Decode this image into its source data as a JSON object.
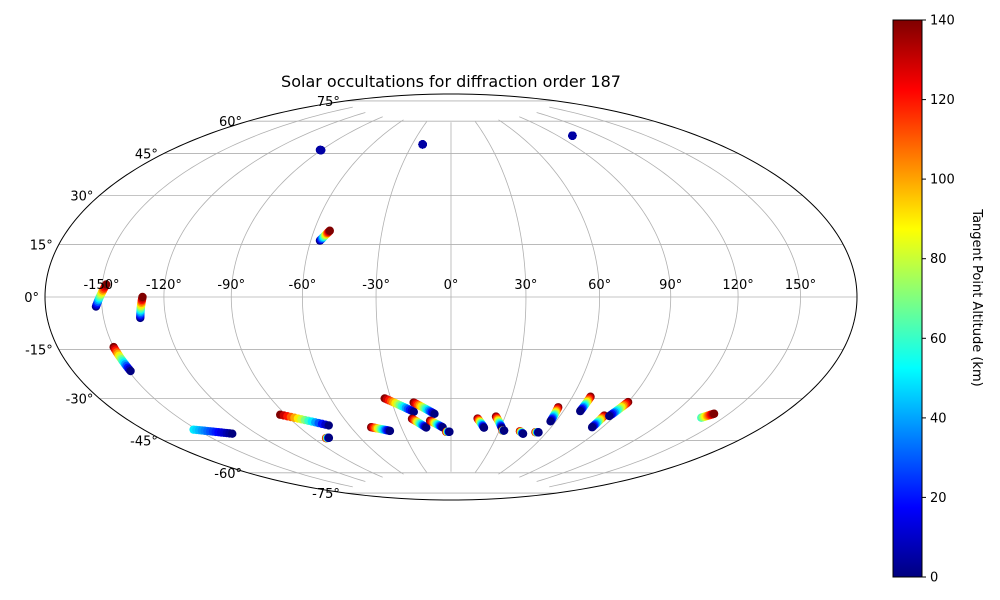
{
  "chart_data": {
    "type": "scatter",
    "projection": "hammer",
    "title": "Solar occultations for diffraction order 187",
    "grid": true,
    "lon_ticks": [
      -150,
      -120,
      -90,
      -60,
      -30,
      0,
      30,
      60,
      90,
      120,
      150
    ],
    "lon_tick_labels": [
      "-150°",
      "-120°",
      "-90°",
      "-60°",
      "-30°",
      "0°",
      "30°",
      "60°",
      "90°",
      "120°",
      "150°"
    ],
    "lat_ticks": [
      -75,
      -60,
      -45,
      -30,
      -15,
      0,
      15,
      30,
      45,
      60,
      75
    ],
    "lat_tick_labels": [
      "-75°",
      "-60°",
      "-45°",
      "-30°",
      "-15°",
      "0°",
      "15°",
      "30°",
      "45°",
      "60°",
      "75°"
    ],
    "colorbar": {
      "label": "Tangent Point Altitude (km)",
      "range": [
        0,
        140
      ],
      "ticks": [
        0,
        20,
        40,
        60,
        80,
        100,
        120,
        140
      ],
      "tick_labels": [
        "0",
        "20",
        "40",
        "60",
        "80",
        "100",
        "120",
        "140"
      ],
      "colormap": "jet"
    },
    "occultations": [
      {
        "start": [
          -153,
          -3
        ],
        "end": [
          -148,
          4
        ],
        "alt_start": 0,
        "alt_end": 140
      },
      {
        "start": [
          -132,
          -7
        ],
        "end": [
          -130,
          0
        ],
        "alt_start": 0,
        "alt_end": 140
      },
      {
        "start": [
          -150,
          -16
        ],
        "end": [
          -149,
          -24
        ],
        "alt_start": 140,
        "alt_end": 0
      },
      {
        "start": [
          -152,
          -45
        ],
        "end": [
          -134,
          -49
        ],
        "alt_start": 50,
        "alt_end": 0
      },
      {
        "start": [
          -93,
          -45
        ],
        "end": [
          -72,
          -51
        ],
        "alt_start": 140,
        "alt_end": 0
      },
      {
        "start": [
          -82,
          -56
        ],
        "end": [
          -80,
          -56
        ],
        "alt_start": 140,
        "alt_end": 0
      },
      {
        "start": [
          -91,
          58
        ],
        "end": [
          -90,
          58
        ],
        "alt_start": 5,
        "alt_end": 5
      },
      {
        "start": [
          -22,
          64
        ],
        "end": [
          -22,
          64
        ],
        "alt_start": 5,
        "alt_end": 5
      },
      {
        "start": [
          -56,
          22
        ],
        "end": [
          -53,
          26
        ],
        "alt_start": 0,
        "alt_end": 140
      },
      {
        "start": [
          -48,
          -53
        ],
        "end": [
          -38,
          -55
        ],
        "alt_start": 140,
        "alt_end": 0
      },
      {
        "start": [
          -33,
          -41
        ],
        "end": [
          -20,
          -47
        ],
        "alt_start": 140,
        "alt_end": 0
      },
      {
        "start": [
          -22,
          -50
        ],
        "end": [
          -15,
          -54
        ],
        "alt_start": 140,
        "alt_end": 0
      },
      {
        "start": [
          -19,
          -43
        ],
        "end": [
          -9,
          -48
        ],
        "alt_start": 140,
        "alt_end": 0
      },
      {
        "start": [
          -12,
          -51
        ],
        "end": [
          -5,
          -54
        ],
        "alt_start": 140,
        "alt_end": 0
      },
      {
        "start": [
          -3,
          -56
        ],
        "end": [
          -1,
          -56
        ],
        "alt_start": 140,
        "alt_end": 0
      },
      {
        "start": [
          15,
          -50
        ],
        "end": [
          20,
          -54
        ],
        "alt_start": 140,
        "alt_end": 0
      },
      {
        "start": [
          25,
          -49
        ],
        "end": [
          31,
          -54
        ],
        "alt_start": 140,
        "alt_end": 0
      },
      {
        "start": [
          32,
          -55
        ],
        "end": [
          33,
          -55
        ],
        "alt_start": 140,
        "alt_end": 0
      },
      {
        "start": [
          43,
          -55
        ],
        "end": [
          46,
          -56
        ],
        "alt_start": 140,
        "alt_end": 0
      },
      {
        "start": [
          53,
          -55
        ],
        "end": [
          55,
          -55
        ],
        "alt_start": 140,
        "alt_end": 0
      },
      {
        "start": [
          56,
          -44
        ],
        "end": [
          57,
          -50
        ],
        "alt_start": 140,
        "alt_end": 0
      },
      {
        "start": [
          69,
          -39
        ],
        "end": [
          69,
          -45
        ],
        "alt_start": 140,
        "alt_end": 0
      },
      {
        "start": [
          84,
          -46
        ],
        "end": [
          84,
          -51
        ],
        "alt_start": 140,
        "alt_end": 0
      },
      {
        "start": [
          90,
          -40
        ],
        "end": [
          87,
          -46
        ],
        "alt_start": 140,
        "alt_end": 0
      },
      {
        "start": [
          101,
          64
        ],
        "end": [
          101,
          64
        ],
        "alt_start": 5,
        "alt_end": 5
      },
      {
        "start": [
          138,
          -42
        ],
        "end": [
          142,
          -40
        ],
        "alt_start": 60,
        "alt_end": 140
      }
    ]
  }
}
